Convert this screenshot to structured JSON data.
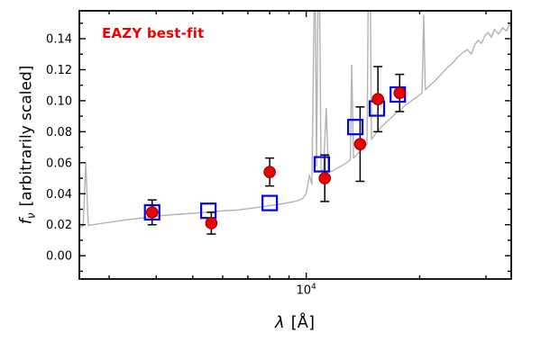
{
  "chart_data": {
    "type": "line",
    "title": "",
    "annotation": "EAZY best-fit",
    "annotation_color": "#ee0000",
    "xlabel": {
      "symbol": "λ",
      "rest": "[Å]"
    },
    "ylabel": {
      "symbol": "f",
      "sub": "ν",
      "rest": "[arbitrarily scaled]"
    },
    "xscale": "log",
    "xlim": [
      2500,
      35000
    ],
    "ylim": [
      -0.015,
      0.158
    ],
    "grid": false,
    "legend": "none",
    "ytick_values": [
      0.0,
      0.02,
      0.04,
      0.06,
      0.08,
      0.1,
      0.12,
      0.14
    ],
    "ytick_labels": [
      "0.00",
      "0.02",
      "0.04",
      "0.06",
      "0.08",
      "0.10",
      "0.12",
      "0.14"
    ],
    "ytick_minor": [
      -0.01,
      0.01,
      0.03,
      0.05,
      0.07,
      0.09,
      0.11,
      0.13,
      0.15
    ],
    "xtick_major": {
      "value": 10000,
      "base": "10",
      "exp": "4"
    },
    "xtick_minor": [
      3000,
      4000,
      5000,
      6000,
      7000,
      8000,
      9000,
      20000,
      30000
    ],
    "series": [
      {
        "name": "eazy-model-spectrum",
        "type": "line",
        "color": "#b3b3b3",
        "points": [
          [
            2500,
            0.018
          ],
          [
            2560,
            0.0195
          ],
          [
            2600,
            0.06
          ],
          [
            2640,
            0.0195
          ],
          [
            2800,
            0.0205
          ],
          [
            3000,
            0.0215
          ],
          [
            3300,
            0.023
          ],
          [
            3700,
            0.0245
          ],
          [
            4100,
            0.0258
          ],
          [
            4600,
            0.0268
          ],
          [
            5100,
            0.0275
          ],
          [
            5600,
            0.0285
          ],
          [
            6100,
            0.029
          ],
          [
            6600,
            0.0295
          ],
          [
            7100,
            0.0305
          ],
          [
            7600,
            0.0315
          ],
          [
            8100,
            0.0325
          ],
          [
            8600,
            0.0335
          ],
          [
            9100,
            0.0345
          ],
          [
            9500,
            0.0355
          ],
          [
            9800,
            0.037
          ],
          [
            10000,
            0.04
          ],
          [
            10200,
            0.052
          ],
          [
            10350,
            0.046
          ],
          [
            10550,
            0.2
          ],
          [
            10650,
            0.058
          ],
          [
            10800,
            0.22
          ],
          [
            10950,
            0.056
          ],
          [
            11100,
            0.054
          ],
          [
            11300,
            0.095
          ],
          [
            11450,
            0.054
          ],
          [
            11700,
            0.0545
          ],
          [
            12000,
            0.056
          ],
          [
            12400,
            0.058
          ],
          [
            12800,
            0.06
          ],
          [
            13100,
            0.062
          ],
          [
            13200,
            0.123
          ],
          [
            13350,
            0.063
          ],
          [
            13700,
            0.066
          ],
          [
            14100,
            0.069
          ],
          [
            14500,
            0.072
          ],
          [
            14700,
            0.25
          ],
          [
            14900,
            0.075
          ],
          [
            15300,
            0.079
          ],
          [
            15800,
            0.083
          ],
          [
            16300,
            0.086
          ],
          [
            16800,
            0.089
          ],
          [
            17300,
            0.092
          ],
          [
            17800,
            0.094
          ],
          [
            18300,
            0.097
          ],
          [
            18800,
            0.099
          ],
          [
            19300,
            0.101
          ],
          [
            19800,
            0.103
          ],
          [
            20300,
            0.105
          ],
          [
            20500,
            0.155
          ],
          [
            20700,
            0.107
          ],
          [
            21300,
            0.11
          ],
          [
            22000,
            0.113
          ],
          [
            22800,
            0.117
          ],
          [
            23600,
            0.121
          ],
          [
            24400,
            0.124
          ],
          [
            25200,
            0.128
          ],
          [
            26000,
            0.131
          ],
          [
            26800,
            0.133
          ],
          [
            27400,
            0.13
          ],
          [
            28000,
            0.136
          ],
          [
            28600,
            0.139
          ],
          [
            29200,
            0.137
          ],
          [
            29800,
            0.142
          ],
          [
            30400,
            0.144
          ],
          [
            31000,
            0.141
          ],
          [
            31600,
            0.146
          ],
          [
            32400,
            0.143
          ],
          [
            33200,
            0.147
          ],
          [
            34000,
            0.145
          ],
          [
            34600,
            0.149
          ],
          [
            35000,
            0.148
          ]
        ]
      },
      {
        "name": "model-photometry",
        "type": "scatter",
        "marker": "open-square",
        "color": "#0000ee",
        "points": [
          [
            3900,
            0.028
          ],
          [
            5500,
            0.029
          ],
          [
            8000,
            0.034
          ],
          [
            11000,
            0.059
          ],
          [
            13500,
            0.083
          ],
          [
            15400,
            0.095
          ],
          [
            17500,
            0.104
          ]
        ]
      },
      {
        "name": "observed-photometry",
        "type": "scatter",
        "marker": "filled-circle",
        "color": "#ee0000",
        "error_color": "#000000",
        "points": [
          [
            3900,
            0.028,
            0.008
          ],
          [
            5600,
            0.021,
            0.007
          ],
          [
            8000,
            0.054,
            0.009
          ],
          [
            11200,
            0.05,
            0.015
          ],
          [
            13900,
            0.072,
            0.024
          ],
          [
            15500,
            0.101,
            0.021
          ],
          [
            17700,
            0.105,
            0.012
          ]
        ]
      }
    ]
  }
}
